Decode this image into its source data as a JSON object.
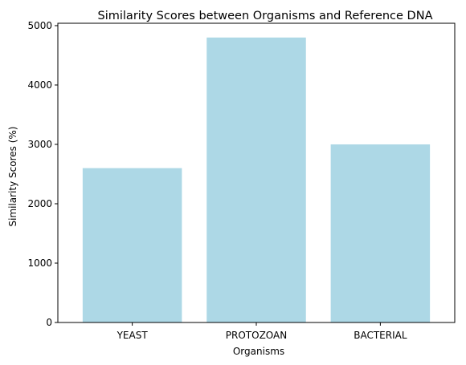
{
  "chart_data": {
    "type": "bar",
    "title": "Similarity Scores between Organisms and Reference DNA",
    "xlabel": "Organisms",
    "ylabel": "Similarity Scores (%)",
    "categories": [
      "YEAST",
      "PROTOZOAN",
      "BACTERIAL"
    ],
    "values": [
      2600,
      4800,
      3000
    ],
    "ylim": [
      0,
      5040
    ],
    "yticks": [
      0,
      1000,
      2000,
      3000,
      4000,
      5000
    ],
    "bar_color": "#add8e6",
    "grid": false,
    "legend": "none"
  }
}
